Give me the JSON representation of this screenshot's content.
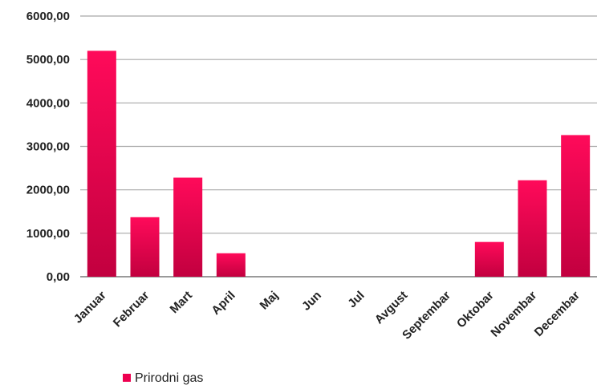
{
  "chart_data": {
    "type": "bar",
    "categories": [
      "Januar",
      "Februar",
      "Mart",
      "April",
      "Maj",
      "Jun",
      "Jul",
      "Avgust",
      "Septembar",
      "Oktobar",
      "Novembar",
      "Decembar"
    ],
    "series": [
      {
        "name": "Prirodni gas",
        "values": [
          5200,
          1370,
          2280,
          540,
          0,
          0,
          0,
          0,
          0,
          800,
          2220,
          3260
        ]
      }
    ],
    "yticks": [
      "0,00",
      "1000,00",
      "2000,00",
      "3000,00",
      "4000,00",
      "5000,00",
      "6000,00"
    ],
    "ylim": [
      0,
      6000
    ],
    "title": "",
    "xlabel": "",
    "ylabel": "",
    "grid": true,
    "legend_position": "bottom-left",
    "bar_color_top": "#ff0a5a",
    "bar_color_bottom": "#c2003f",
    "legend_color": "#ee0050"
  }
}
